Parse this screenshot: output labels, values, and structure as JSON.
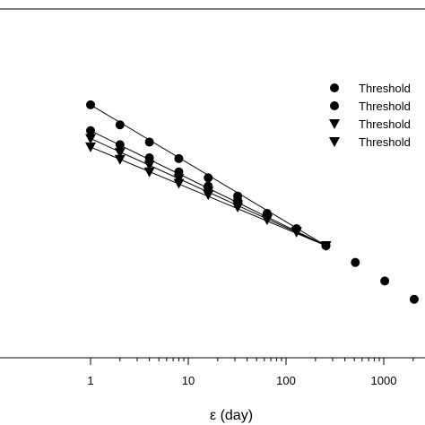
{
  "chart_data": {
    "type": "scatter",
    "x_scale": "log",
    "y_scale": "log",
    "xlabel": "ε (day)",
    "ylabel": "",
    "xlim": [
      0.5,
      2500
    ],
    "ylim": [
      0.5,
      15
    ],
    "x_ticks": [
      {
        "value": 1,
        "label": "1"
      },
      {
        "value": 10,
        "label": "10"
      },
      {
        "value": 100,
        "label": "100"
      },
      {
        "value": 1000,
        "label": "1000"
      }
    ],
    "x_minor_ticks": [
      2,
      3,
      4,
      5,
      6,
      7,
      8,
      9,
      20,
      30,
      40,
      50,
      60,
      70,
      80,
      90,
      200,
      300,
      400,
      500,
      600,
      700,
      800,
      900,
      2000
    ],
    "legend_position": "right",
    "series": [
      {
        "name": "Threshold",
        "marker": "circle",
        "fit_line": true,
        "x": [
          1,
          2,
          4,
          8,
          16,
          32,
          64,
          128,
          256
        ],
        "y": [
          6.39,
          5.14,
          4.26,
          3.56,
          2.89,
          2.37,
          1.96,
          1.66,
          1.38
        ]
      },
      {
        "name": "Threshold",
        "marker": "circle",
        "fit_line": true,
        "x": [
          1,
          2,
          4,
          8,
          16,
          32,
          64,
          128,
          256
        ],
        "y": [
          4.82,
          4.14,
          3.59,
          3.08,
          2.64,
          2.26,
          1.94,
          1.66,
          1.38
        ]
      },
      {
        "name": "Threshold",
        "marker": "triangle-down",
        "fit_line": true,
        "x": [
          1,
          2,
          4,
          8,
          16,
          32,
          64,
          128,
          256
        ],
        "y": [
          4.43,
          3.8,
          3.32,
          2.86,
          2.49,
          2.15,
          1.85,
          1.61,
          1.38
        ]
      },
      {
        "name": "Threshold",
        "marker": "triangle-down",
        "fit_line": true,
        "x": [
          1,
          2,
          4,
          8,
          16,
          32,
          64,
          128,
          256
        ],
        "y": [
          4.04,
          3.53,
          3.08,
          2.72,
          2.4,
          2.1,
          1.83,
          1.6,
          1.38
        ]
      },
      {
        "name": "",
        "marker": "circle",
        "fit_line": false,
        "x": [
          512,
          1024,
          2048
        ],
        "y": [
          1.15,
          0.94,
          0.77
        ]
      }
    ]
  }
}
